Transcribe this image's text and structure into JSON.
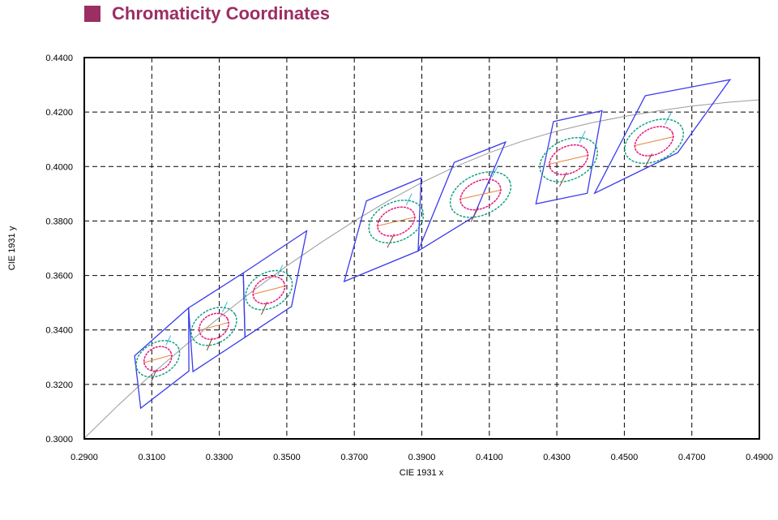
{
  "title": "Chromaticity Coordinates",
  "colors": {
    "title": "#9b2e63",
    "quad": "#3a3aee",
    "outer_ellipse": "#16a085",
    "inner_ellipse": "#e6197e",
    "locus": "#9a9a9a",
    "grid": "#000000"
  },
  "chart_data": {
    "type": "scatter",
    "title": "Chromaticity Coordinates",
    "xlabel": "CIE 1931 x",
    "ylabel": "CIE 1931 y",
    "xlim": [
      0.29,
      0.49
    ],
    "ylim": [
      0.3,
      0.44
    ],
    "xticks": [
      "0.2900",
      "0.3100",
      "0.3300",
      "0.3500",
      "0.3700",
      "0.3900",
      "0.4100",
      "0.4300",
      "0.4500",
      "0.4700",
      "0.4900"
    ],
    "yticks": [
      "0.3000",
      "0.3200",
      "0.3400",
      "0.3600",
      "0.3800",
      "0.4000",
      "0.4200",
      "0.4400"
    ],
    "grid": true,
    "blackbody_locus": [
      [
        0.29,
        0.3002
      ],
      [
        0.3,
        0.3123
      ],
      [
        0.31,
        0.3238
      ],
      [
        0.32,
        0.3344
      ],
      [
        0.33,
        0.3446
      ],
      [
        0.34,
        0.3544
      ],
      [
        0.35,
        0.3635
      ],
      [
        0.36,
        0.372
      ],
      [
        0.37,
        0.38
      ],
      [
        0.38,
        0.3874
      ],
      [
        0.39,
        0.3941
      ],
      [
        0.4,
        0.4
      ],
      [
        0.41,
        0.4051
      ],
      [
        0.42,
        0.4094
      ],
      [
        0.43,
        0.413
      ],
      [
        0.44,
        0.416
      ],
      [
        0.45,
        0.4184
      ],
      [
        0.46,
        0.4204
      ],
      [
        0.47,
        0.4222
      ],
      [
        0.48,
        0.4235
      ],
      [
        0.49,
        0.4245
      ]
    ],
    "bins": [
      {
        "center": [
          0.3118,
          0.3294
        ],
        "quad": [
          [
            0.3049,
            0.3305
          ],
          [
            0.3209,
            0.3481
          ],
          [
            0.321,
            0.3249
          ],
          [
            0.3067,
            0.3113
          ]
        ],
        "outer_ellipse": {
          "rx": 0.0069,
          "ry": 0.0059,
          "angle_deg": -30
        },
        "inner_ellipse": {
          "rx": 0.0043,
          "ry": 0.0042,
          "angle_deg": -30
        }
      },
      {
        "center": [
          0.3284,
          0.3413
        ],
        "quad": [
          [
            0.3209,
            0.3481
          ],
          [
            0.3371,
            0.3609
          ],
          [
            0.3376,
            0.3373
          ],
          [
            0.3222,
            0.3247
          ]
        ],
        "outer_ellipse": {
          "rx": 0.0072,
          "ry": 0.0062,
          "angle_deg": -30
        },
        "inner_ellipse": {
          "rx": 0.0046,
          "ry": 0.0044,
          "angle_deg": -30
        }
      },
      {
        "center": [
          0.3447,
          0.3546
        ],
        "quad": [
          [
            0.3371,
            0.3609
          ],
          [
            0.3559,
            0.3764
          ],
          [
            0.3514,
            0.3486
          ],
          [
            0.3376,
            0.3373
          ]
        ],
        "outer_ellipse": {
          "rx": 0.0074,
          "ry": 0.0064,
          "angle_deg": -30
        },
        "inner_ellipse": {
          "rx": 0.005,
          "ry": 0.0045,
          "angle_deg": -30
        }
      },
      {
        "center": [
          0.3824,
          0.3798
        ],
        "quad": [
          [
            0.3736,
            0.3874
          ],
          [
            0.3898,
            0.3958
          ],
          [
            0.3889,
            0.369
          ],
          [
            0.367,
            0.3578
          ]
        ],
        "outer_ellipse": {
          "rx": 0.0085,
          "ry": 0.0071,
          "angle_deg": -25
        },
        "inner_ellipse": {
          "rx": 0.0058,
          "ry": 0.0048,
          "angle_deg": -25
        }
      },
      {
        "center": [
          0.4074,
          0.3897
        ],
        "quad": [
          [
            0.3996,
            0.4015
          ],
          [
            0.4148,
            0.409
          ],
          [
            0.4053,
            0.3815
          ],
          [
            0.3889,
            0.369
          ]
        ],
        "outer_ellipse": {
          "rx": 0.0095,
          "ry": 0.0074,
          "angle_deg": -25
        },
        "inner_ellipse": {
          "rx": 0.0063,
          "ry": 0.005,
          "angle_deg": -25
        }
      },
      {
        "center": [
          0.4335,
          0.4025
        ],
        "quad": [
          [
            0.429,
            0.4165
          ],
          [
            0.4434,
            0.4205
          ],
          [
            0.439,
            0.3902
          ],
          [
            0.4238,
            0.3863
          ]
        ],
        "outer_ellipse": {
          "rx": 0.009,
          "ry": 0.0073,
          "angle_deg": -25
        },
        "inner_ellipse": {
          "rx": 0.006,
          "ry": 0.0049,
          "angle_deg": -25
        }
      },
      {
        "center": [
          0.4588,
          0.4093
        ],
        "quad": [
          [
            0.4562,
            0.426
          ],
          [
            0.4813,
            0.4319
          ],
          [
            0.4658,
            0.4051
          ],
          [
            0.4412,
            0.3902
          ]
        ],
        "outer_ellipse": {
          "rx": 0.0092,
          "ry": 0.0072,
          "angle_deg": -25
        },
        "inner_ellipse": {
          "rx": 0.006,
          "ry": 0.0048,
          "angle_deg": -25
        }
      }
    ]
  }
}
